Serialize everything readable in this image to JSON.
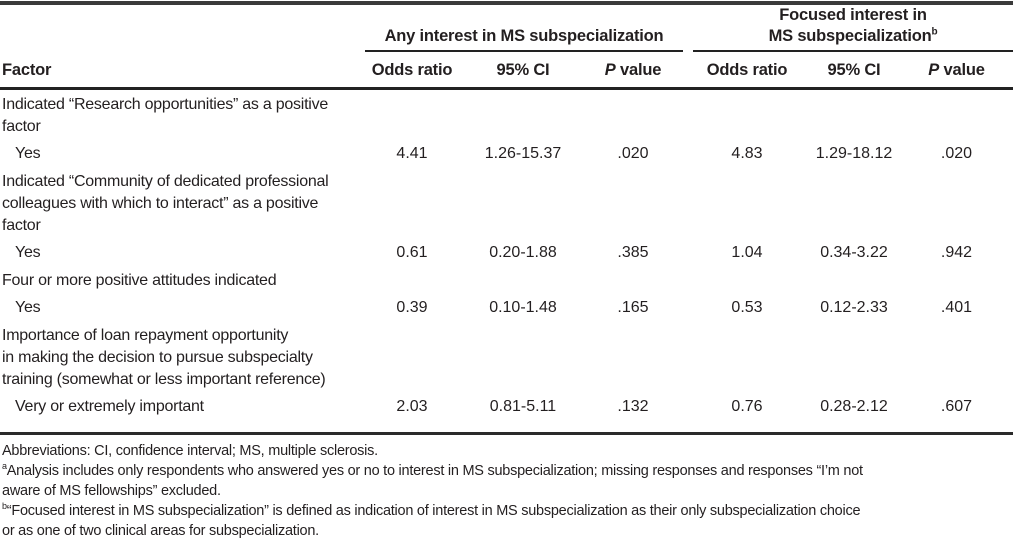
{
  "page": {
    "background": "#ffffff",
    "text_color": "#231f20",
    "rule_color": "#2a2a2a"
  },
  "table": {
    "factor_header": "Factor",
    "groups": [
      {
        "line1": "Any interest in MS subspecialization",
        "sup": ""
      },
      {
        "line1": "Focused interest in",
        "line2": "MS subspecialization",
        "sup": "b"
      }
    ],
    "columns": {
      "odds_ratio": "Odds ratio",
      "ci": "95% CI",
      "p_italic": "P",
      "p_rest": " value"
    },
    "rows": [
      {
        "type": "group",
        "label": [
          "Indicated “Research opportunities” as a positive",
          "factor"
        ]
      },
      {
        "type": "data",
        "label": [
          "Yes"
        ],
        "values": [
          "4.41",
          "1.26-15.37",
          ".020",
          "4.83",
          "1.29-18.12",
          ".020"
        ]
      },
      {
        "type": "group",
        "label": [
          "Indicated “Community of dedicated professional",
          "colleagues with which to interact” as a positive",
          "factor"
        ]
      },
      {
        "type": "data",
        "label": [
          "Yes"
        ],
        "values": [
          "0.61",
          "0.20-1.88",
          ".385",
          "1.04",
          "0.34-3.22",
          ".942"
        ]
      },
      {
        "type": "group",
        "label": [
          "Four or more positive attitudes indicated"
        ]
      },
      {
        "type": "data",
        "label": [
          "Yes"
        ],
        "values": [
          "0.39",
          "0.10-1.48",
          ".165",
          "0.53",
          "0.12-2.33",
          ".401"
        ]
      },
      {
        "type": "group",
        "label": [
          "Importance of loan repayment opportunity",
          "in making the decision to pursue subspecialty",
          "training (somewhat or less important reference)"
        ]
      },
      {
        "type": "data",
        "label": [
          "Very or extremely important"
        ],
        "values": [
          "2.03",
          "0.81-5.11",
          ".132",
          "0.76",
          "0.28-2.12",
          ".607"
        ]
      }
    ]
  },
  "footnotes": {
    "abbreviations": "Abbreviations: CI, confidence interval; MS, multiple sclerosis.",
    "a": {
      "sup": "a",
      "lines": [
        "Analysis includes only respondents who answered yes or no to interest in MS subspecialization; missing responses and responses “I’m not",
        "aware of MS fellowships” excluded."
      ]
    },
    "b": {
      "sup": "b",
      "lines": [
        "“Focused interest in MS subspecialization” is defined as indication of interest in MS subspecialization as their only subspecialization choice",
        "or as one of two clinical areas for subspecialization."
      ]
    }
  }
}
